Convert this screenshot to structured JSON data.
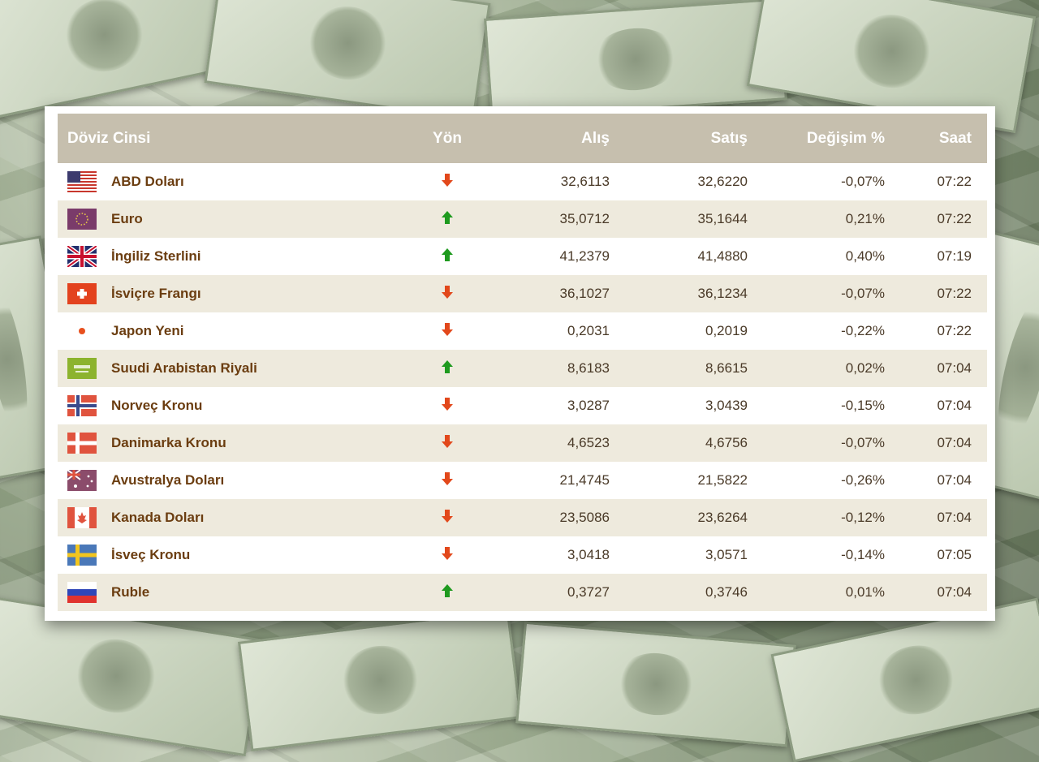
{
  "headers": {
    "currency": "Döviz Cinsi",
    "direction": "Yön",
    "buy": "Alış",
    "sell": "Satış",
    "change": "Değişim %",
    "time": "Saat"
  },
  "colors": {
    "up": "#1e9a1e",
    "down": "#e2481b",
    "header_bg": "#c6bfae",
    "name_text": "#6b3d10"
  },
  "rows": [
    {
      "flag": "us-flag-icon",
      "name": "ABD Doları",
      "direction": "down",
      "buy": "32,6113",
      "sell": "32,6220",
      "change": "-0,07%",
      "time": "07:22"
    },
    {
      "flag": "eu-flag-icon",
      "name": "Euro",
      "direction": "up",
      "buy": "35,0712",
      "sell": "35,1644",
      "change": "0,21%",
      "time": "07:22"
    },
    {
      "flag": "gb-flag-icon",
      "name": "İngiliz Sterlini",
      "direction": "up",
      "buy": "41,2379",
      "sell": "41,4880",
      "change": "0,40%",
      "time": "07:19"
    },
    {
      "flag": "ch-flag-icon",
      "name": "İsviçre Frangı",
      "direction": "down",
      "buy": "36,1027",
      "sell": "36,1234",
      "change": "-0,07%",
      "time": "07:22"
    },
    {
      "flag": "jp-flag-icon",
      "name": "Japon Yeni",
      "direction": "down",
      "buy": "0,2031",
      "sell": "0,2019",
      "change": "-0,22%",
      "time": "07:22"
    },
    {
      "flag": "sa-flag-icon",
      "name": "Suudi Arabistan Riyali",
      "direction": "up",
      "buy": "8,6183",
      "sell": "8,6615",
      "change": "0,02%",
      "time": "07:04"
    },
    {
      "flag": "no-flag-icon",
      "name": "Norveç Kronu",
      "direction": "down",
      "buy": "3,0287",
      "sell": "3,0439",
      "change": "-0,15%",
      "time": "07:04"
    },
    {
      "flag": "dk-flag-icon",
      "name": "Danimarka Kronu",
      "direction": "down",
      "buy": "4,6523",
      "sell": "4,6756",
      "change": "-0,07%",
      "time": "07:04"
    },
    {
      "flag": "au-flag-icon",
      "name": "Avustralya Doları",
      "direction": "down",
      "buy": "21,4745",
      "sell": "21,5822",
      "change": "-0,26%",
      "time": "07:04"
    },
    {
      "flag": "ca-flag-icon",
      "name": "Kanada Doları",
      "direction": "down",
      "buy": "23,5086",
      "sell": "23,6264",
      "change": "-0,12%",
      "time": "07:04"
    },
    {
      "flag": "se-flag-icon",
      "name": "İsveç Kronu",
      "direction": "down",
      "buy": "3,0418",
      "sell": "3,0571",
      "change": "-0,14%",
      "time": "07:05"
    },
    {
      "flag": "ru-flag-icon",
      "name": "Ruble",
      "direction": "up",
      "buy": "0,3727",
      "sell": "0,3746",
      "change": "0,01%",
      "time": "07:04"
    }
  ]
}
